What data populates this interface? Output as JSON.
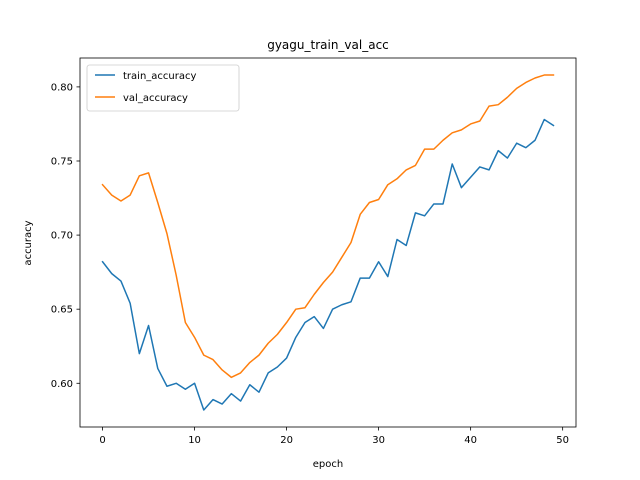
{
  "chart_data": {
    "type": "line",
    "title": "gyagu_train_val_acc",
    "xlabel": "epoch",
    "ylabel": "accuracy",
    "xlim": [
      -2.45,
      51.45
    ],
    "ylim": [
      0.5705,
      0.8195
    ],
    "xticks": [
      0,
      10,
      20,
      30,
      40,
      50
    ],
    "yticks": [
      0.6,
      0.65,
      0.7,
      0.75,
      0.8
    ],
    "xtick_labels": [
      "0",
      "10",
      "20",
      "30",
      "40",
      "50"
    ],
    "ytick_labels": [
      "0.60",
      "0.65",
      "0.70",
      "0.75",
      "0.80"
    ],
    "legend_position": "upper-left",
    "grid": false,
    "x": [
      0,
      1,
      2,
      3,
      4,
      5,
      6,
      7,
      8,
      9,
      10,
      11,
      12,
      13,
      14,
      15,
      16,
      17,
      18,
      19,
      20,
      21,
      22,
      23,
      24,
      25,
      26,
      27,
      28,
      29,
      30,
      31,
      32,
      33,
      34,
      35,
      36,
      37,
      38,
      39,
      40,
      41,
      42,
      43,
      44,
      45,
      46,
      47,
      48,
      49
    ],
    "series": [
      {
        "name": "train_accuracy",
        "color": "#1f77b4",
        "values": [
          0.682,
          0.674,
          0.669,
          0.654,
          0.62,
          0.639,
          0.61,
          0.598,
          0.6,
          0.596,
          0.6,
          0.582,
          0.589,
          0.586,
          0.593,
          0.588,
          0.599,
          0.594,
          0.607,
          0.611,
          0.617,
          0.631,
          0.641,
          0.645,
          0.637,
          0.65,
          0.653,
          0.655,
          0.671,
          0.671,
          0.682,
          0.672,
          0.697,
          0.693,
          0.715,
          0.713,
          0.721,
          0.721,
          0.748,
          0.732,
          0.739,
          0.746,
          0.744,
          0.757,
          0.752,
          0.762,
          0.759,
          0.764,
          0.778,
          0.774
        ]
      },
      {
        "name": "val_accuracy",
        "color": "#ff7f0e",
        "values": [
          0.734,
          0.727,
          0.723,
          0.727,
          0.74,
          0.742,
          0.722,
          0.701,
          0.673,
          0.641,
          0.631,
          0.619,
          0.616,
          0.609,
          0.604,
          0.607,
          0.614,
          0.619,
          0.627,
          0.633,
          0.641,
          0.65,
          0.651,
          0.66,
          0.668,
          0.675,
          0.685,
          0.695,
          0.714,
          0.722,
          0.724,
          0.734,
          0.738,
          0.744,
          0.747,
          0.758,
          0.758,
          0.764,
          0.769,
          0.771,
          0.775,
          0.777,
          0.787,
          0.788,
          0.793,
          0.799,
          0.803,
          0.806,
          0.808,
          0.808
        ]
      }
    ]
  }
}
